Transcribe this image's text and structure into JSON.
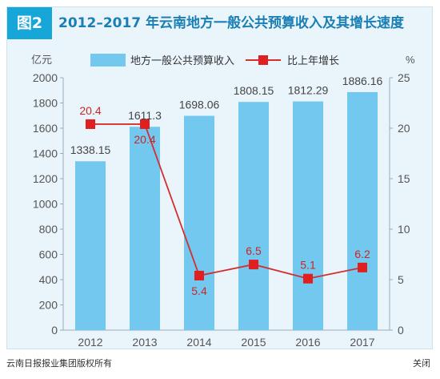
{
  "figure": {
    "badge": "图2",
    "title": "2012–2017 年云南地方一般公共预算收入及其增长速度"
  },
  "footer": {
    "copyright": "云南日报报业集团版权所有",
    "close_label": "关闭"
  },
  "colors": {
    "bar": "#72c8ee",
    "line": "#d32f2f",
    "marker": "#e02020",
    "axis_text": "#555555",
    "title": "#1a7fb5",
    "badge": "#17a6d8"
  },
  "chart_data": {
    "type": "bar",
    "categories": [
      "2012",
      "2013",
      "2014",
      "2015",
      "2016",
      "2017"
    ],
    "series": [
      {
        "name": "地方一般公共预算收入",
        "type": "bar",
        "axis": "left",
        "values": [
          1338.15,
          1611.3,
          1698.06,
          1808.15,
          1812.29,
          1886.16
        ],
        "labels": [
          "1338.15",
          "1611.3",
          "1698.06",
          "1808.15",
          "1812.29",
          "1886.16"
        ]
      },
      {
        "name": "比上年增长",
        "type": "line",
        "axis": "right",
        "values": [
          20.4,
          20.4,
          5.4,
          6.5,
          5.1,
          6.2
        ],
        "labels": [
          "20.4",
          "20.4",
          "5.4",
          "6.5",
          "5.1",
          "6.2"
        ]
      }
    ],
    "left_axis": {
      "unit": "亿元",
      "ylim": [
        0,
        2000
      ],
      "ticks": [
        "0",
        "200",
        "400",
        "600",
        "800",
        "1000",
        "1200",
        "1400",
        "1600",
        "1800",
        "2000"
      ]
    },
    "right_axis": {
      "unit": "%",
      "ylim": [
        0,
        25
      ],
      "ticks": [
        "0",
        "5",
        "10",
        "15",
        "20",
        "25"
      ]
    },
    "legend": {
      "position": "top"
    },
    "grid": false
  }
}
